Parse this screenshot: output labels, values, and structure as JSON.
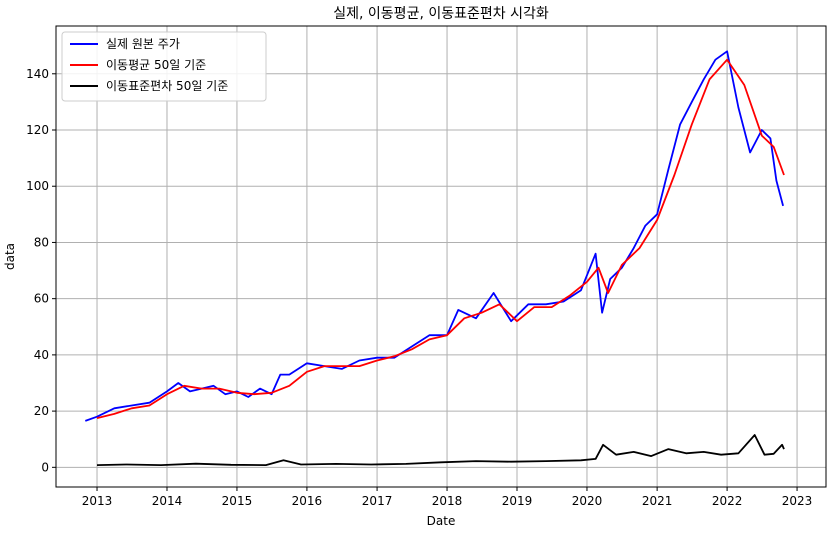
{
  "chart_data": {
    "type": "line",
    "title": "실제, 이동평균, 이동표준편차 시각화",
    "xlabel": "Date",
    "ylabel": "data",
    "xlim": [
      "2012-06-01",
      "2023-06-01"
    ],
    "ylim": [
      -7,
      157
    ],
    "grid": true,
    "legend_position": "top-left",
    "x_ticks": [
      "2013",
      "2014",
      "2015",
      "2016",
      "2017",
      "2018",
      "2019",
      "2020",
      "2021",
      "2022",
      "2023"
    ],
    "y_ticks": [
      0,
      20,
      40,
      60,
      80,
      100,
      120,
      140
    ],
    "series": [
      {
        "name": "실제 원본 주가",
        "color": "#0000ff",
        "x": [
          "2012-11-01",
          "2013-01-01",
          "2013-04-01",
          "2013-07-01",
          "2013-10-01",
          "2014-01-01",
          "2014-03-01",
          "2014-05-01",
          "2014-07-01",
          "2014-09-01",
          "2014-11-01",
          "2015-01-01",
          "2015-03-01",
          "2015-05-01",
          "2015-07-01",
          "2015-08-15",
          "2015-10-01",
          "2016-01-01",
          "2016-04-01",
          "2016-07-01",
          "2016-10-01",
          "2017-01-01",
          "2017-04-01",
          "2017-07-01",
          "2017-10-01",
          "2018-01-01",
          "2018-03-01",
          "2018-06-01",
          "2018-09-01",
          "2018-12-01",
          "2019-03-01",
          "2019-06-01",
          "2019-09-01",
          "2019-12-01",
          "2020-02-15",
          "2020-03-20",
          "2020-05-01",
          "2020-07-01",
          "2020-09-01",
          "2020-11-01",
          "2021-01-01",
          "2021-03-01",
          "2021-05-01",
          "2021-07-01",
          "2021-09-01",
          "2021-11-01",
          "2022-01-01",
          "2022-03-01",
          "2022-05-01",
          "2022-07-01",
          "2022-08-15",
          "2022-09-15",
          "2022-10-20"
        ],
        "y": [
          16.5,
          18,
          21,
          22,
          23,
          27,
          30,
          27,
          28,
          29,
          26,
          27,
          25,
          28,
          26,
          33,
          33,
          37,
          36,
          35,
          38,
          39,
          39,
          43,
          47,
          47,
          56,
          53,
          62,
          52,
          58,
          58,
          59,
          63,
          76,
          55,
          67,
          71,
          78,
          86,
          90,
          106,
          122,
          130,
          138,
          145,
          148,
          128,
          112,
          120,
          117,
          102,
          93
        ]
      },
      {
        "name": "이동평균 50일 기준",
        "color": "#ff0000",
        "x": [
          "2013-01-01",
          "2013-04-01",
          "2013-07-01",
          "2013-10-01",
          "2014-01-01",
          "2014-04-01",
          "2014-07-01",
          "2014-10-01",
          "2015-01-01",
          "2015-04-01",
          "2015-07-01",
          "2015-10-01",
          "2016-01-01",
          "2016-04-01",
          "2016-07-01",
          "2016-10-01",
          "2017-01-01",
          "2017-04-01",
          "2017-07-01",
          "2017-10-01",
          "2018-01-01",
          "2018-04-01",
          "2018-07-01",
          "2018-10-01",
          "2019-01-01",
          "2019-04-01",
          "2019-07-01",
          "2019-10-01",
          "2020-01-01",
          "2020-03-01",
          "2020-04-20",
          "2020-07-01",
          "2020-10-01",
          "2021-01-01",
          "2021-04-01",
          "2021-07-01",
          "2021-10-01",
          "2022-01-01",
          "2022-04-01",
          "2022-07-01",
          "2022-09-01",
          "2022-10-25"
        ],
        "y": [
          17.5,
          19,
          21,
          22,
          26,
          29,
          28,
          28,
          26.5,
          26,
          26.5,
          29,
          34,
          36,
          36,
          36,
          38,
          39.5,
          42,
          45.5,
          47,
          53,
          55,
          58,
          52,
          57,
          57,
          61,
          66,
          71,
          62,
          72,
          78,
          88,
          104,
          122,
          138,
          145,
          136,
          118,
          114,
          104
        ]
      },
      {
        "name": "이동표준편차 50일 기준",
        "color": "#000000",
        "x": [
          "2013-01-01",
          "2013-06-01",
          "2013-12-01",
          "2014-06-01",
          "2014-12-01",
          "2015-06-01",
          "2015-09-01",
          "2015-12-01",
          "2016-06-01",
          "2016-12-01",
          "2017-06-01",
          "2017-12-01",
          "2018-06-01",
          "2018-12-01",
          "2019-06-01",
          "2019-12-01",
          "2020-02-15",
          "2020-03-25",
          "2020-06-01",
          "2020-09-01",
          "2020-12-01",
          "2021-03-01",
          "2021-06-01",
          "2021-09-01",
          "2021-12-01",
          "2022-03-01",
          "2022-05-25",
          "2022-07-15",
          "2022-09-01",
          "2022-10-15",
          "2022-10-25"
        ],
        "y": [
          0.8,
          1.0,
          0.8,
          1.3,
          0.9,
          0.8,
          2.5,
          1.0,
          1.2,
          1.0,
          1.2,
          1.8,
          2.2,
          2.0,
          2.2,
          2.5,
          3.0,
          8.0,
          4.5,
          5.5,
          4.0,
          6.5,
          5.0,
          5.5,
          4.5,
          5.0,
          11.5,
          4.5,
          4.8,
          8.0,
          6.5
        ]
      }
    ]
  }
}
